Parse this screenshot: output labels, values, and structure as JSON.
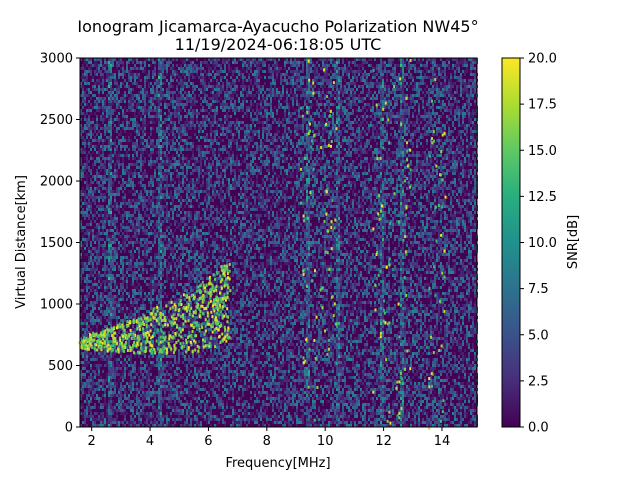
{
  "chart_data": {
    "type": "heatmap",
    "title_line1": "Ionogram Jicamarca-Ayacucho Polarization NW45°",
    "title_line2": "11/19/2024-06:18:05 UTC",
    "xlabel": "Frequency[MHz]",
    "ylabel": "Virtual Distance[km]",
    "xlim": [
      1.6,
      15.2
    ],
    "ylim": [
      0,
      3000
    ],
    "xticks": [
      2,
      4,
      6,
      8,
      10,
      12,
      14
    ],
    "yticks": [
      0,
      500,
      1000,
      1500,
      2000,
      2500,
      3000
    ],
    "colorbar": {
      "label": "SNR[dB]",
      "range": [
        0.0,
        20.0
      ],
      "ticks": [
        "0.0",
        "2.5",
        "5.0",
        "7.5",
        "10.0",
        "12.5",
        "15.0",
        "17.5",
        "20.0"
      ],
      "colormap": "viridis"
    },
    "features": {
      "trace": [
        {
          "freq": 1.6,
          "dist": 690
        },
        {
          "freq": 2.5,
          "dist": 720
        },
        {
          "freq": 3.5,
          "dist": 760
        },
        {
          "freq": 4.5,
          "dist": 810
        },
        {
          "freq": 5.5,
          "dist": 880
        },
        {
          "freq": 6.2,
          "dist": 960
        },
        {
          "freq": 6.7,
          "dist": 1060
        }
      ],
      "vertical_lines_mhz": [
        2.6,
        4.3,
        9.4,
        10.4,
        11.9,
        12.6
      ],
      "scattered_high_snr_mhz": [
        9.4,
        10.1,
        11.9,
        12.6,
        13.8
      ]
    }
  }
}
